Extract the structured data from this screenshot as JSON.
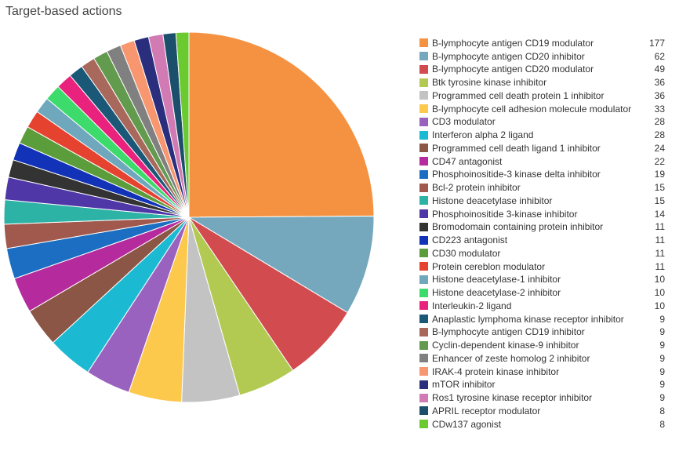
{
  "chart_data": {
    "type": "pie",
    "title": "Target-based actions",
    "legend": "right",
    "categories": [
      "B-lymphocyte antigen CD19 modulator",
      "B-lymphocyte antigen CD20 inhibitor",
      "B-lymphocyte antigen CD20 modulator",
      "Btk tyrosine kinase inhibitor",
      "Programmed cell death protein 1 inhibitor",
      "B-lymphocyte cell adhesion molecule modulator",
      "CD3 modulator",
      "Interferon alpha 2 ligand",
      "Programmed cell death ligand 1 inhibitor",
      "CD47 antagonist",
      "Phosphoinositide-3 kinase delta inhibitor",
      "Bcl-2 protein inhibitor",
      "Histone deacetylase inhibitor",
      "Phosphoinositide 3-kinase inhibitor",
      "Bromodomain containing protein inhibitor",
      "CD223 antagonist",
      "CD30 modulator",
      "Protein cereblon modulator",
      "Histone deacetylase-1 inhibitor",
      "Histone deacetylase-2 inhibitor",
      "Interleukin-2 ligand",
      "Anaplastic lymphoma kinase receptor inhibitor",
      "B-lymphocyte antigen CD19 inhibitor",
      "Cyclin-dependent kinase-9 inhibitor",
      "Enhancer of zeste homolog 2 inhibitor",
      "IRAK-4 protein kinase inhibitor",
      "mTOR inhibitor",
      "Ros1 tyrosine kinase receptor inhibitor",
      "APRIL receptor modulator",
      "CDw137 agonist"
    ],
    "values": [
      177,
      62,
      49,
      36,
      36,
      33,
      28,
      28,
      24,
      22,
      19,
      15,
      15,
      14,
      11,
      11,
      11,
      11,
      10,
      10,
      10,
      9,
      9,
      9,
      9,
      9,
      9,
      9,
      8,
      8
    ],
    "colors": [
      "#F59241",
      "#75A8BD",
      "#D24B4F",
      "#B3CA52",
      "#C3C3C3",
      "#FDC94D",
      "#9A62BF",
      "#1CBAD2",
      "#8C5646",
      "#B52B9D",
      "#1B6EC2",
      "#A0594C",
      "#2DB3A6",
      "#5037A7",
      "#333333",
      "#1232B8",
      "#5C9D3B",
      "#E54330",
      "#6FA8BC",
      "#3CDB6B",
      "#E9237D",
      "#1B5877",
      "#A8685B",
      "#629A4E",
      "#808080",
      "#F8966F",
      "#2A2E7C",
      "#D27AB4",
      "#1C4F6B",
      "#6ACA2F"
    ]
  }
}
